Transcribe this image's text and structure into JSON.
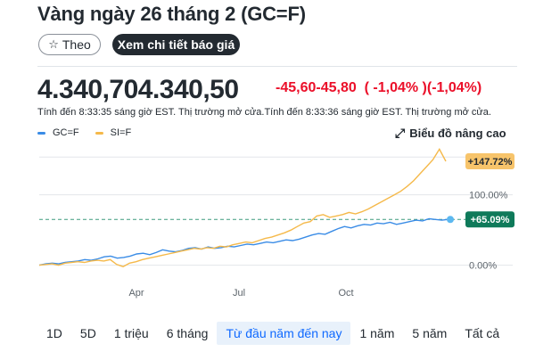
{
  "header": {
    "title": "Vàng ngày 26 tháng 2 (GC=F)",
    "follow_label": "Theo",
    "quote_label": "Xem chi tiết báo giá"
  },
  "quote": {
    "price": "4.340,704.340,50",
    "change": "-45,60-45,80  ( -1,04% )(-1,04%)",
    "timeline": "Tính đến 8:33:35 sáng giờ EST. Thị trường mở cửa.Tính đến 8:33:36 sáng giờ EST. Thị trường mở cửa."
  },
  "legend": [
    {
      "label": "GC=F",
      "color": "#3a8ce6"
    },
    {
      "label": "SI=F",
      "color": "#f5b94a"
    }
  ],
  "advanced_label": "Biểu đồ nâng cao",
  "chart_data": {
    "type": "line",
    "x_tick_labels": [
      "Apr",
      "Jul",
      "Oct"
    ],
    "y_tick_labels": [
      "100.00%",
      "0.00%"
    ],
    "y_ticks": [
      100,
      0
    ],
    "ylim": [
      -3,
      168
    ],
    "grid": true,
    "legend_position": "top-left",
    "series": [
      {
        "name": "GC=F",
        "color": "#3a8ce6",
        "end_label": "+65.09%",
        "end_value": 65.09,
        "values": [
          0,
          2,
          3,
          2,
          4,
          5,
          6,
          8,
          7,
          9,
          12,
          13,
          10,
          11,
          13,
          16,
          17,
          15,
          18,
          22,
          20,
          19,
          21,
          24,
          25,
          23,
          26,
          24,
          25,
          27,
          26,
          28,
          30,
          29,
          31,
          33,
          32,
          34,
          36,
          35,
          37,
          40,
          43,
          45,
          44,
          48,
          52,
          55,
          53,
          56,
          58,
          57,
          60,
          59,
          61,
          58,
          60,
          62,
          64,
          63,
          66,
          65,
          64,
          65.09
        ]
      },
      {
        "name": "SI=F",
        "color": "#f5b94a",
        "end_label": "+147.72%",
        "end_value": 147.72,
        "values": [
          0,
          1,
          2,
          0,
          3,
          4,
          5,
          4,
          6,
          7,
          6,
          8,
          1,
          -2,
          3,
          5,
          8,
          10,
          12,
          14,
          16,
          18,
          20,
          22,
          24,
          23,
          25,
          24,
          27,
          26,
          29,
          31,
          33,
          32,
          35,
          38,
          40,
          43,
          46,
          50,
          55,
          60,
          62,
          70,
          72,
          68,
          70,
          72,
          75,
          73,
          76,
          80,
          85,
          90,
          95,
          100,
          105,
          112,
          120,
          130,
          140,
          150,
          165,
          147.72
        ]
      }
    ],
    "reference_value": 65.09
  },
  "ranges": [
    {
      "label": "1D",
      "active": false
    },
    {
      "label": "5D",
      "active": false
    },
    {
      "label": "1 triệu",
      "active": false
    },
    {
      "label": "6 tháng",
      "active": false
    },
    {
      "label": "Từ đầu năm đến nay",
      "active": true
    },
    {
      "label": "1 năm",
      "active": false
    },
    {
      "label": "5 năm",
      "active": false
    },
    {
      "label": "Tất cả",
      "active": false
    }
  ]
}
